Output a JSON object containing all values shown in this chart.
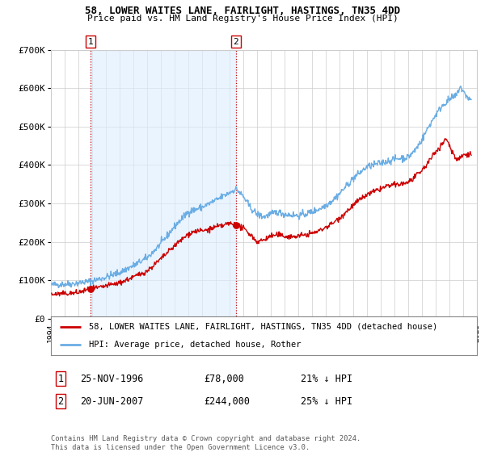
{
  "title": "58, LOWER WAITES LANE, FAIRLIGHT, HASTINGS, TN35 4DD",
  "subtitle": "Price paid vs. HM Land Registry's House Price Index (HPI)",
  "legend_line1": "58, LOWER WAITES LANE, FAIRLIGHT, HASTINGS, TN35 4DD (detached house)",
  "legend_line2": "HPI: Average price, detached house, Rother",
  "footnote": "Contains HM Land Registry data © Crown copyright and database right 2024.\nThis data is licensed under the Open Government Licence v3.0.",
  "annotation1_label": "1",
  "annotation1_date": "25-NOV-1996",
  "annotation1_price": "£78,000",
  "annotation1_hpi": "21% ↓ HPI",
  "annotation2_label": "2",
  "annotation2_date": "20-JUN-2007",
  "annotation2_price": "£244,000",
  "annotation2_hpi": "25% ↓ HPI",
  "xmin": 1994,
  "xmax": 2025,
  "ymin": 0,
  "ymax": 700000,
  "yticks": [
    0,
    100000,
    200000,
    300000,
    400000,
    500000,
    600000,
    700000
  ],
  "ytick_labels": [
    "£0",
    "£100K",
    "£200K",
    "£300K",
    "£400K",
    "£500K",
    "£600K",
    "£700K"
  ],
  "sale1_x": 1996.9,
  "sale1_y": 78000,
  "sale2_x": 2007.47,
  "sale2_y": 244000,
  "hpi_color": "#6aade4",
  "price_color": "#cc0000",
  "background_color": "#ffffff",
  "hatch_left_end": 1995.5,
  "hatch_right_start": 2024.5,
  "shade_color": "#ddeeff",
  "title_fontsize": 9,
  "subtitle_fontsize": 8,
  "tick_fontsize": 7,
  "ytick_fontsize": 8
}
